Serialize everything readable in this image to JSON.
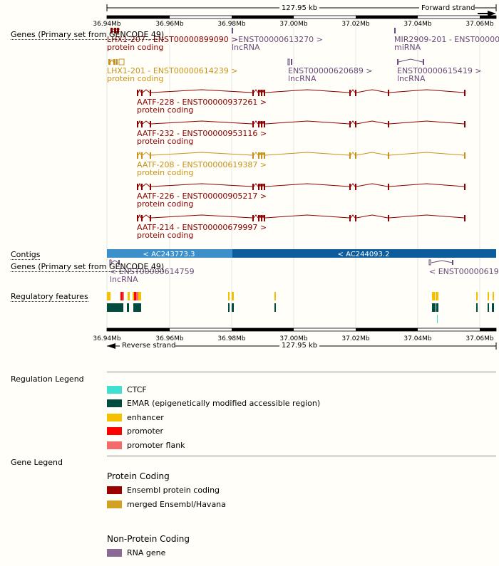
{
  "scale": {
    "top_span": "127.95 kb",
    "top_strand": "Forward strand",
    "bottom_span": "127.95 kb",
    "bottom_strand": "Reverse strand",
    "ticks": [
      "36.94Mb",
      "36.96Mb",
      "36.98Mb",
      "37.00Mb",
      "37.02Mb",
      "37.04Mb",
      "37.06Mb"
    ]
  },
  "tracks": {
    "genes_forward": "Genes (Primary set from GENCODE 49)",
    "contigs": "Contigs",
    "genes_reverse": "Genes (Primary set from GENCODE 49)",
    "regulatory": "Regulatory features"
  },
  "forward_genes": [
    {
      "name": "LHX1-207 - ENST00000899090 >",
      "biotype": "protein coding"
    },
    {
      "name": ">ENST00000613270 >",
      "biotype": "lncRNA"
    },
    {
      "name": "MIR2909-201 - ENST000006",
      "biotype": "miRNA"
    },
    {
      "name": "LHX1-201 - ENST00000614239 >",
      "biotype": "protein coding"
    },
    {
      "name": "ENST00000620689 >",
      "biotype": "lncRNA"
    },
    {
      "name": "ENST00000615419 >",
      "biotype": "lncRNA"
    },
    {
      "name": "AATF-228 - ENST00000937261 >",
      "biotype": "protein coding"
    },
    {
      "name": "AATF-232 - ENST00000953116 >",
      "biotype": "protein coding"
    },
    {
      "name": "AATF-208 - ENST00000619387 >",
      "biotype": "protein coding"
    },
    {
      "name": "AATF-226 - ENST00000905217 >",
      "biotype": "protein coding"
    },
    {
      "name": "AATF-214 - ENST00000679997 >",
      "biotype": "protein coding"
    }
  ],
  "contigs": [
    {
      "label": "< AC243773.3"
    },
    {
      "label": "< AC244093.2"
    }
  ],
  "reverse_genes": [
    {
      "name": "< ENST00000614759",
      "biotype": "lncRNA"
    },
    {
      "name": "< ENST0000061961",
      "biotype": ""
    }
  ],
  "legend": {
    "regulation_title": "Regulation Legend",
    "regulation": [
      {
        "label": "CTCF",
        "color": "#40e0d0"
      },
      {
        "label": "EMAR (epigenetically modified accessible region)",
        "color": "#004d40"
      },
      {
        "label": "enhancer",
        "color": "#f5c000"
      },
      {
        "label": "promoter",
        "color": "#ff0000"
      },
      {
        "label": "promoter flank",
        "color": "#f36b6b"
      }
    ],
    "gene_title": "Gene Legend",
    "protein_coding_title": "Protein Coding",
    "protein_coding": [
      {
        "label": "Ensembl protein coding",
        "color": "#9a0000"
      },
      {
        "label": "merged Ensembl/Havana",
        "color": "#d4a020"
      }
    ],
    "non_protein_title": "Non-Protein Coding",
    "non_protein": [
      {
        "label": "RNA gene",
        "color": "#8b6a96"
      }
    ]
  },
  "colors": {
    "protein_coding": "#8b0000",
    "merged": "#c8921a",
    "rna": "#6a4a7a",
    "contig_light": "#3b8fcb",
    "contig_dark": "#0d5c9c"
  }
}
